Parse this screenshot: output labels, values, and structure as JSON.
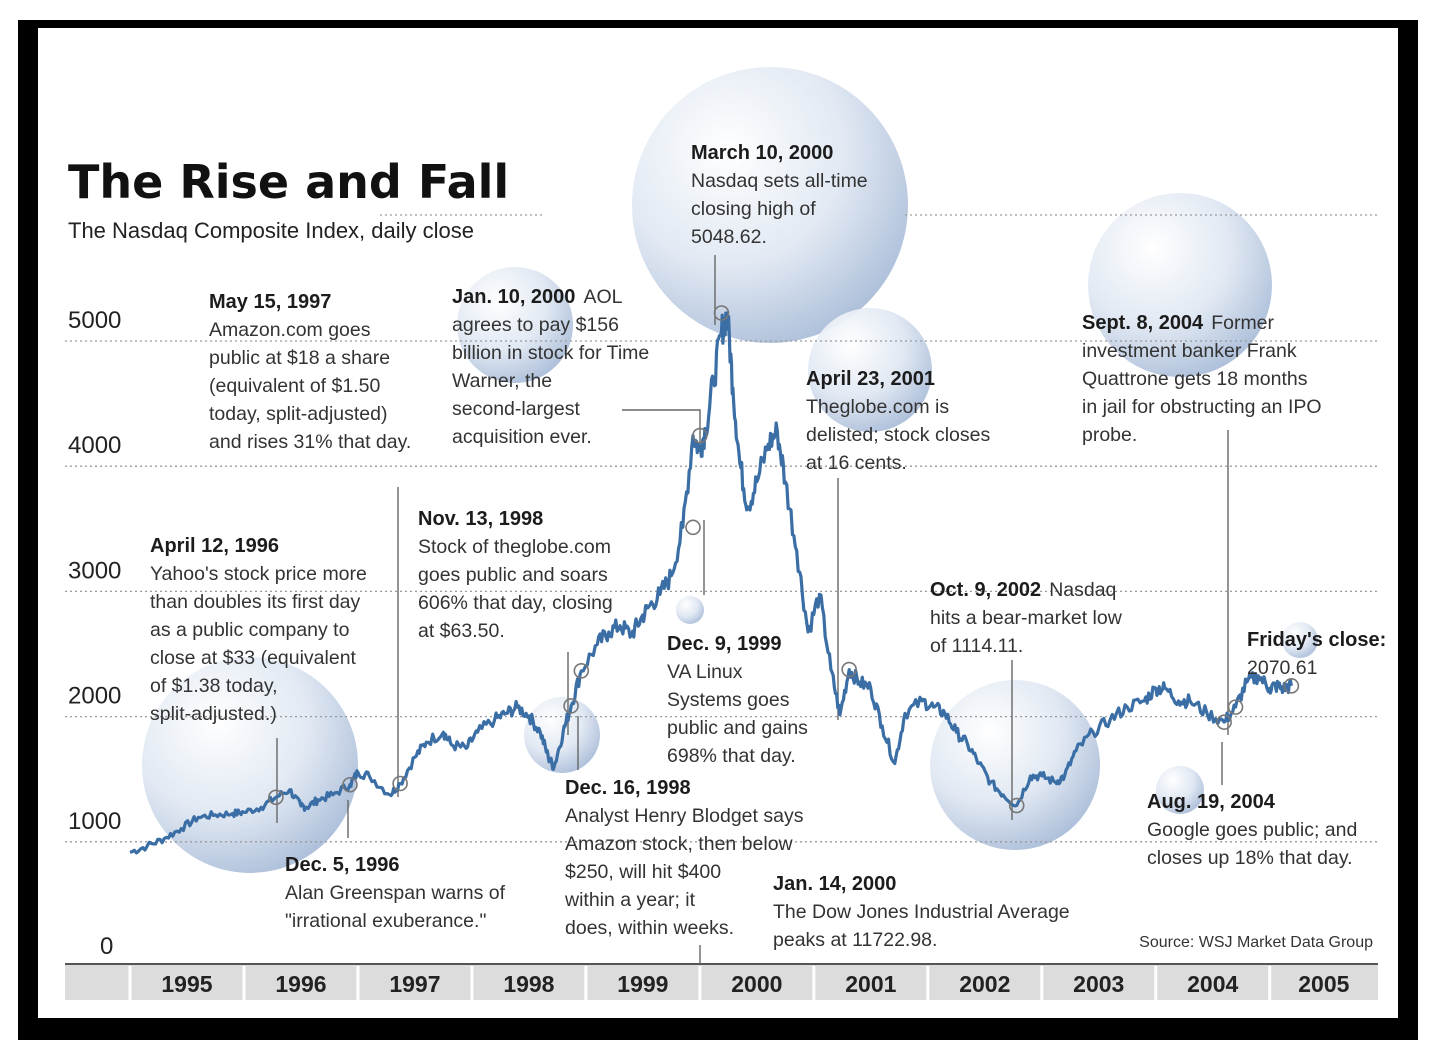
{
  "chart_data": {
    "type": "line",
    "title": "The Rise and Fall",
    "subtitle": "The Nasdaq Composite Index, daily close",
    "xlabel": "",
    "ylabel": "",
    "ylim": [
      0,
      5000
    ],
    "yticks": [
      "5000",
      "4000",
      "3000",
      "2000",
      "1000",
      "0"
    ],
    "ytick_values": [
      5000,
      4000,
      3000,
      2000,
      1000,
      0
    ],
    "xlim": [
      1995.0,
      2005.95
    ],
    "years": [
      "1995",
      "1996",
      "1997",
      "1998",
      "1999",
      "2000",
      "2001",
      "2002",
      "2003",
      "2004",
      "2005"
    ],
    "grid": true,
    "colors": {
      "line": "#3a6ea5",
      "bubble": "#c8d5e8",
      "grid": "#9a9a9a",
      "axis_band": "#dcdcdc"
    },
    "series": [
      {
        "x": [
          1995.0,
          1995.15,
          1995.3,
          1995.45,
          1995.6,
          1995.75,
          1995.9,
          1996.0,
          1996.15,
          1996.28,
          1996.4,
          1996.5,
          1996.55,
          1996.65,
          1996.78,
          1996.93,
          1997.0,
          1997.1,
          1997.28,
          1997.37,
          1997.5,
          1997.6,
          1997.75,
          1997.82,
          1997.95,
          1998.05,
          1998.2,
          1998.3,
          1998.4,
          1998.5,
          1998.6,
          1998.67,
          1998.72,
          1998.8,
          1998.87,
          1998.96,
          1999.1,
          1999.2,
          1999.3,
          1999.4,
          1999.48,
          1999.55,
          1999.65,
          1999.75,
          1999.85,
          1999.94,
          2000.0,
          2000.05,
          2000.12,
          2000.19,
          2000.24,
          2000.29,
          2000.35,
          2000.42,
          2000.5,
          2000.6,
          2000.68,
          2000.75,
          2000.85,
          2000.95,
          2001.05,
          2001.15,
          2001.23,
          2001.31,
          2001.4,
          2001.5,
          2001.6,
          2001.71,
          2001.8,
          2001.95,
          2002.05,
          2002.15,
          2002.25,
          2002.35,
          2002.45,
          2002.55,
          2002.66,
          2002.78,
          2002.9,
          2003.0,
          2003.12,
          2003.2,
          2003.3,
          2003.45,
          2003.6,
          2003.75,
          2003.9,
          2004.0,
          2004.08,
          2004.2,
          2004.3,
          2004.45,
          2004.6,
          2004.7,
          2004.8,
          2004.9,
          2005.0,
          2005.05,
          2005.12,
          2005.19
        ],
        "y": [
          740,
          790,
          850,
          930,
          1020,
          1040,
          1050,
          1060,
          1100,
          1180,
          1240,
          1110,
          1100,
          1160,
          1200,
          1280,
          1380,
          1350,
          1200,
          1290,
          1500,
          1620,
          1700,
          1600,
          1570,
          1700,
          1800,
          1850,
          1900,
          1830,
          1700,
          1500,
          1420,
          1700,
          1910,
          2190,
          2400,
          2500,
          2550,
          2480,
          2600,
          2700,
          2800,
          2950,
          3336,
          4069,
          3950,
          4120,
          4500,
          4900,
          5048,
          4450,
          3850,
          3500,
          3700,
          4000,
          4100,
          3700,
          3150,
          2500,
          2800,
          2200,
          1840,
          2200,
          2100,
          2050,
          1750,
          1450,
          1850,
          1950,
          1900,
          1850,
          1700,
          1600,
          1450,
          1300,
          1200,
          1114,
          1350,
          1350,
          1300,
          1350,
          1550,
          1700,
          1800,
          1900,
          1950,
          2050,
          2050,
          1950,
          1950,
          1850,
          1780,
          1900,
          2100,
          2150,
          2050,
          2070,
          2050,
          2070
        ]
      }
    ],
    "annotations": [
      {
        "date": "April 12, 1996",
        "lines": [
          "Yahoo's stock price more",
          "than doubles its first day",
          "as a public company to",
          "close at $33 (equivalent",
          "of $1.38 today,",
          "split-adjusted.)"
        ],
        "x": 1996.28,
        "y": 1180
      },
      {
        "date": "Dec. 5, 1996",
        "lines": [
          "Alan Greenspan warns of",
          "\"irrational exuberance.\""
        ],
        "x": 1996.93,
        "y": 1280
      },
      {
        "date": "May 15, 1997",
        "lines": [
          "Amazon.com goes",
          "public at $18 a share",
          "(equivalent of $1.50",
          "today, split-adjusted)",
          "and rises 31% that day."
        ],
        "x": 1997.37,
        "y": 1290
      },
      {
        "date": "Nov. 13, 1998",
        "lines": [
          "Stock of theglobe.com",
          "goes public and soars",
          "606% that day, closing",
          "at $63.50."
        ],
        "x": 1998.87,
        "y": 1910
      },
      {
        "date": "Dec. 16, 1998",
        "lines": [
          "Analyst Henry Blodget says",
          "Amazon stock, then below",
          "$250, will hit $400",
          "within a year; it",
          "does, within weeks."
        ],
        "x": 1998.96,
        "y": 2190
      },
      {
        "date": "Dec. 9, 1999",
        "lines": [
          "VA Linux",
          "Systems  goes",
          "public and gains",
          "698% that day."
        ],
        "x": 1999.94,
        "y": 3336
      },
      {
        "date": "Jan. 10, 2000",
        "lines": [
          "AOL",
          "agrees to pay $156",
          "billion in stock for Time",
          "Warner, the",
          "second-largest",
          "acquisition ever."
        ],
        "x": 2000.0,
        "y": 4069
      },
      {
        "date": "Jan. 14, 2000",
        "lines": [
          "The Dow Jones Industrial Average",
          "peaks at 11722.98."
        ],
        "x": 2000.05,
        "y": 3950
      },
      {
        "date": "March 10, 2000",
        "lines": [
          "Nasdaq sets all-time",
          "closing high of",
          "5048.62."
        ],
        "x": 2000.19,
        "y": 5048
      },
      {
        "date": "April 23, 2001",
        "lines": [
          "Theglobe.com is",
          "delisted; stock closes",
          "at 16 cents."
        ],
        "x": 2001.31,
        "y": 2200
      },
      {
        "date": "Oct. 9, 2002",
        "lines": [
          "Nasdaq",
          "hits a bear-market low",
          "of 1114.11."
        ],
        "x": 2002.78,
        "y": 1114
      },
      {
        "date": "Aug. 19, 2004",
        "lines": [
          "Google goes public; and",
          "closes up 18% that day."
        ],
        "x": 2004.6,
        "y": 1780
      },
      {
        "date": "Sept. 8, 2004",
        "lines": [
          "Former",
          "investment banker Frank",
          "Quattrone gets 18 months",
          "in jail for obstructing an IPO",
          "probe."
        ],
        "x": 2004.7,
        "y": 1900
      },
      {
        "date": "Friday's close:",
        "lines": [
          "2070.61"
        ],
        "x": 2005.19,
        "y": 2070
      }
    ],
    "source": "Source: WSJ Market Data Group"
  }
}
